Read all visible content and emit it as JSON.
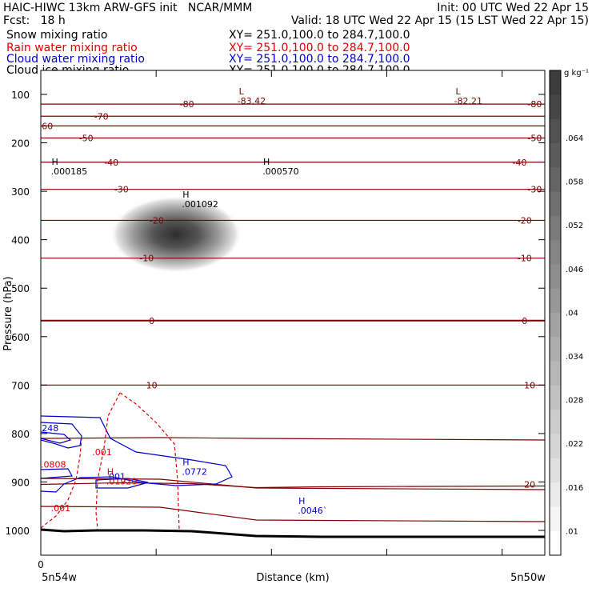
{
  "header": {
    "line1_left": "HAIC-HIWC 13km ARW-GFS init   NCAR/MMM",
    "line1_right": "Init: 00 UTC Wed 22 Apr 15",
    "line2_left": "Fcst:   18 h",
    "line2_right": "Valid: 18 UTC Wed 22 Apr 15 (15 LST Wed 22 Apr 15)"
  },
  "fields": [
    {
      "name": "Snow mixing ratio",
      "xy": "XY= 251.0,100.0 to 284.7,100.0",
      "color": "#000000"
    },
    {
      "name": "Rain water mixing ratio",
      "xy": "XY= 251.0,100.0 to 284.7,100.0",
      "color": "#e00000"
    },
    {
      "name": "Cloud water mixing ratio",
      "xy": "XY= 251.0,100.0 to 284.7,100.0",
      "color": "#0000cc"
    },
    {
      "name": "Cloud ice mixing ratio",
      "xy": "XY= 251.0,100.0 to 284.7,100.0",
      "color": "#000000"
    }
  ],
  "colors": {
    "temperature": "#800000",
    "rain": "#e00000",
    "cloud_water": "#0000cc",
    "text": "#000000"
  },
  "chart_data": {
    "type": "cross-section",
    "xlabel": "Distance (km)",
    "ylabel": "Pressure (hPa)",
    "x_tick_labels": {
      "left": "0",
      "start": "5n54w",
      "end": "5n50w"
    },
    "y_ticks": [
      100,
      200,
      300,
      400,
      500,
      600,
      700,
      800,
      900,
      1000
    ],
    "ylim": [
      1050,
      50
    ],
    "colorbar": {
      "unit": "g kg⁻¹",
      "ticks": [
        ".064",
        ".058",
        ".052",
        ".046",
        ".04",
        ".034",
        ".028",
        ".022",
        ".016",
        ".01"
      ]
    },
    "temperature_contours": [
      {
        "value": -80,
        "pressure": 120
      },
      {
        "value": -70,
        "pressure": 145
      },
      {
        "value": -60,
        "pressure": 165
      },
      {
        "value": -50,
        "pressure": 190
      },
      {
        "value": -40,
        "pressure": 240
      },
      {
        "value": -30,
        "pressure": 296
      },
      {
        "value": -20,
        "pressure": 360
      },
      {
        "value": -10,
        "pressure": 438
      },
      {
        "value": 0,
        "pressure": 567
      },
      {
        "value": 10,
        "pressure": 700
      },
      {
        "value": 20,
        "pressure": 905
      }
    ],
    "temperature_labels": [
      {
        "text": "-80",
        "x": 0.29,
        "pressure": 120
      },
      {
        "text": "-80",
        "x": 0.98,
        "pressure": 120
      },
      {
        "text": "-70",
        "x": 0.12,
        "pressure": 145
      },
      {
        "text": "-60",
        "x": 0.01,
        "pressure": 165
      },
      {
        "text": "-50",
        "x": 0.09,
        "pressure": 190
      },
      {
        "text": "-50",
        "x": 0.98,
        "pressure": 190
      },
      {
        "text": "-40",
        "x": 0.14,
        "pressure": 240
      },
      {
        "text": "-40",
        "x": 0.95,
        "pressure": 240
      },
      {
        "text": "-30",
        "x": 0.16,
        "pressure": 296
      },
      {
        "text": "-30",
        "x": 0.98,
        "pressure": 296
      },
      {
        "text": "-20",
        "x": 0.23,
        "pressure": 360
      },
      {
        "text": "-20",
        "x": 0.96,
        "pressure": 360
      },
      {
        "text": "-10",
        "x": 0.21,
        "pressure": 438
      },
      {
        "text": "-10",
        "x": 0.96,
        "pressure": 438
      },
      {
        "text": "0",
        "x": 0.22,
        "pressure": 567
      },
      {
        "text": "0",
        "x": 0.96,
        "pressure": 567
      },
      {
        "text": "10",
        "x": 0.22,
        "pressure": 700
      },
      {
        "text": "10",
        "x": 0.97,
        "pressure": 700
      },
      {
        "text": "20",
        "x": 0.97,
        "pressure": 905
      }
    ],
    "extrema": [
      {
        "mark": "L",
        "value": "-83.42",
        "x": 0.39,
        "pressure": 110,
        "color": "#800000"
      },
      {
        "mark": "L",
        "value": "-82.21",
        "x": 0.82,
        "pressure": 110,
        "color": "#800000"
      },
      {
        "mark": "H",
        "value": ".000185",
        "x": 0.02,
        "pressure": 255,
        "color": "#000000"
      },
      {
        "mark": "H",
        "value": ".000570",
        "x": 0.44,
        "pressure": 255,
        "color": "#000000"
      },
      {
        "mark": "H",
        "value": ".001092",
        "x": 0.28,
        "pressure": 323,
        "color": "#000000"
      },
      {
        "mark": "H",
        "value": ".0772",
        "x": 0.28,
        "pressure": 875,
        "color": "#0000cc"
      },
      {
        "mark": "H",
        "value": ".0046`",
        "x": 0.51,
        "pressure": 955,
        "color": "#0000cc"
      },
      {
        "mark": "H",
        "value": ".01920",
        "x": 0.13,
        "pressure": 895,
        "color": "#e00000"
      }
    ],
    "rain_labels": [
      {
        "text": ".001",
        "x": 0.102,
        "pressure": 845
      },
      {
        "text": ".0808",
        "x": 0.0,
        "pressure": 870
      },
      {
        "text": ".001",
        "x": 0.02,
        "pressure": 960
      }
    ],
    "cloud_water_labels": [
      {
        "text": "248",
        "x": 0.002,
        "pressure": 795
      },
      {
        "text": "001",
        "x": 0.135,
        "pressure": 895
      }
    ],
    "ice_max": {
      "x": 0.25,
      "pressure": 385,
      "value": 0.064
    }
  }
}
